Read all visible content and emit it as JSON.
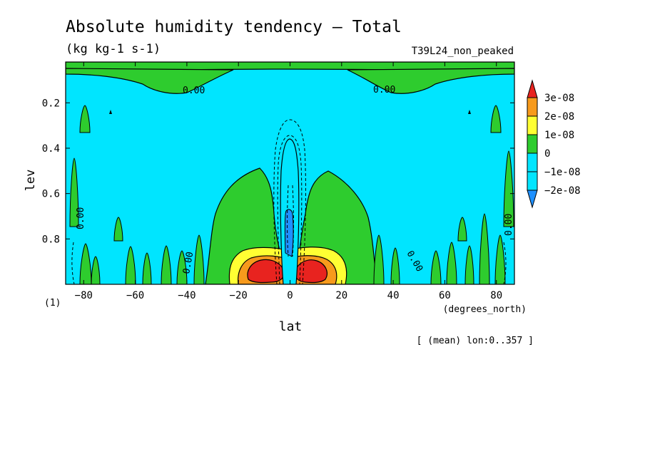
{
  "chart_data": {
    "type": "heatmap",
    "title": "Absolute humidity tendency — Total",
    "units": "(kg kg-1 s-1)",
    "run_label": "T39L24_non_peaked",
    "xlabel": "lat",
    "xlabel_units": "(degrees_north)",
    "ylabel": "lev",
    "ylabel_units": "(1)",
    "mean_note": "[ (mean) lon:0..357 ]",
    "xlim": [
      -87,
      87
    ],
    "ylim": [
      1.0,
      0.02
    ],
    "x_ticks": [
      -80,
      -60,
      -40,
      -20,
      0,
      20,
      40,
      60,
      80
    ],
    "x_tick_labels": [
      "−80",
      "−60",
      "−40",
      "−20",
      "0",
      "20",
      "40",
      "60",
      "80"
    ],
    "y_ticks": [
      0.2,
      0.4,
      0.6,
      0.8
    ],
    "y_tick_labels": [
      "0.2",
      "0.4",
      "0.6",
      "0.8"
    ],
    "contour_label": "0.00",
    "colorbar": {
      "levels": [
        {
          "label": "3e-08",
          "color": "#e8231f"
        },
        {
          "label": "2e-08",
          "color": "#f79a1c"
        },
        {
          "label": "1e-08",
          "color": "#ffff33"
        },
        {
          "label": "0",
          "color": "#2ecc2e"
        },
        {
          "label": "−1e-08",
          "color": "#00e5ff"
        },
        {
          "label": "−2e-08",
          "color": "#1e90ff"
        }
      ],
      "background_color": "#00e5ff"
    },
    "regions": [
      {
        "name": "top-band",
        "level": "0",
        "x": [
          -87,
          87
        ],
        "y": [
          0.02,
          0.05
        ]
      },
      {
        "name": "upper-left-tongue",
        "level": "0",
        "x": [
          -87,
          -25
        ],
        "y": [
          0.05,
          0.15
        ]
      },
      {
        "name": "upper-right-tongue",
        "level": "0",
        "x": [
          25,
          87
        ],
        "y": [
          0.05,
          0.15
        ]
      },
      {
        "name": "left-tropical-plume",
        "level": "0",
        "x": [
          -30,
          -3
        ],
        "y": [
          0.48,
          1.0
        ]
      },
      {
        "name": "right-tropical-plume",
        "level": "0",
        "x": [
          3,
          35
        ],
        "y": [
          0.48,
          1.0
        ]
      },
      {
        "name": "near-surface-band",
        "level": "1e-08",
        "x": [
          -20,
          23
        ],
        "y": [
          0.86,
          1.0
        ]
      },
      {
        "name": "near-surface-core",
        "level": "2e-08",
        "x": [
          -17,
          19
        ],
        "y": [
          0.89,
          1.0
        ]
      },
      {
        "name": "left-max",
        "level": "3e-08",
        "x": [
          -9,
          -1
        ],
        "y": [
          0.92,
          0.99
        ]
      },
      {
        "name": "right-max",
        "level": "3e-08",
        "x": [
          2,
          9
        ],
        "y": [
          0.92,
          0.99
        ]
      },
      {
        "name": "equatorial-column",
        "level": "−1e-08",
        "x": [
          -4,
          4
        ],
        "y": [
          0.35,
          0.99
        ]
      }
    ]
  }
}
